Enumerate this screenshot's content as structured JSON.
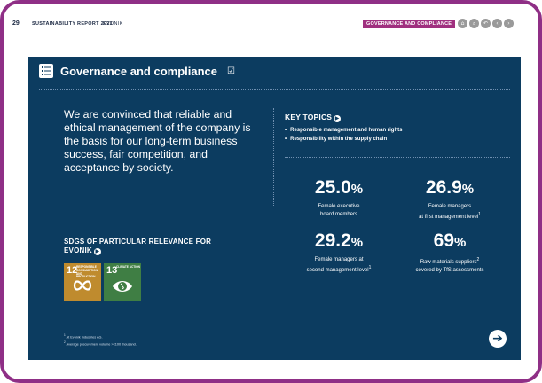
{
  "header": {
    "page_number": "29",
    "report_title": "SUSTAINABILITY REPORT 2021",
    "brand": "EVONIK",
    "section_tab": "GOVERNANCE AND COMPLIANCE",
    "nav_icons": [
      "home-icon",
      "search-icon",
      "back-icon",
      "prev-icon",
      "next-icon"
    ]
  },
  "panel": {
    "title": "Governance and compliance",
    "intro": "We are convinced that reliable and ethical management of the company is the basis for our long-term business success, fair competition, and acceptance by society.",
    "sdg_heading": "SDGS OF PARTICULAR RELEVANCE FOR EVONIK",
    "sdgs": [
      {
        "number": "12",
        "label": "RESPONSIBLE CONSUMPTION AND PRODUCTION",
        "color": "#bf8b2e"
      },
      {
        "number": "13",
        "label": "CLIMATE ACTION",
        "color": "#3f7e44"
      }
    ],
    "key_topics_heading": "KEY TOPICS",
    "key_topics": [
      "Responsible management and human rights",
      "Responsibility within the supply chain"
    ],
    "kpis": [
      {
        "value": "25.0",
        "unit": "%",
        "label_line1": "Female executive",
        "label_line2": "board members",
        "note": ""
      },
      {
        "value": "26.9",
        "unit": "%",
        "label_line1": "Female managers",
        "label_line2": "at first management level",
        "note": "1"
      },
      {
        "value": "29.2",
        "unit": "%",
        "label_line1": "Female managers at",
        "label_line2": "second management level",
        "note": "1"
      },
      {
        "value": "69",
        "unit": "%",
        "label_line1": "Raw materials suppliers",
        "label_line2": "covered by TfS assessments",
        "note": "2"
      }
    ],
    "footnotes": [
      {
        "num": "1",
        "text": "At Evonik Industries AG."
      },
      {
        "num": "2",
        "text": "Average procurement volume >€100 thousand."
      }
    ]
  },
  "colors": {
    "frame": "#8f2f86",
    "panel": "#0c3c60",
    "section_tab": "#a0307f"
  }
}
